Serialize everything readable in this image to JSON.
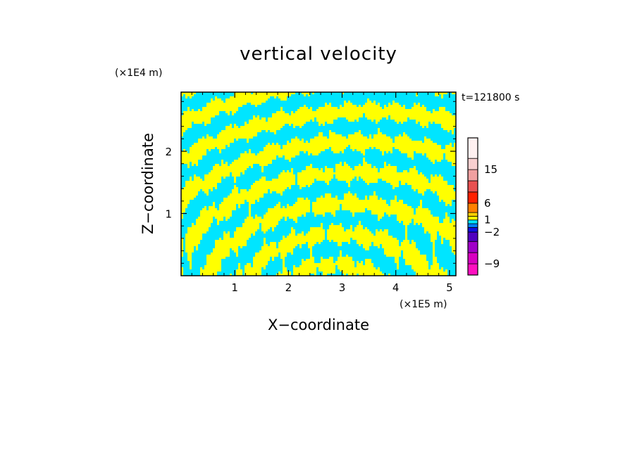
{
  "chart_data": {
    "type": "heatmap",
    "title": "vertical velocity",
    "xlabel": "X−coordinate",
    "ylabel": "Z−coordinate",
    "x_unit": "(×1E5 m)",
    "y_unit": "(×1E4 m)",
    "time_label": "t=121800 s",
    "xlim": [
      0,
      5.12
    ],
    "ylim": [
      0,
      2.95
    ],
    "x_ticks": [
      1,
      2,
      3,
      4,
      5
    ],
    "y_ticks": [
      1,
      2
    ],
    "x_tick_labels": [
      "1",
      "2",
      "3",
      "4",
      "5"
    ],
    "y_tick_labels": [
      "1",
      "2"
    ],
    "grid": false,
    "legend": "colorbar-right",
    "field_colors": {
      "positive": "#ffff00",
      "negative": "#00e5ff"
    },
    "colorbar": {
      "levels_bottom_to_top": [
        -12,
        -9,
        -6,
        -4,
        -2,
        -1,
        0,
        1,
        2,
        4,
        6,
        9,
        12,
        15,
        18,
        21
      ],
      "colors_bottom_to_top": [
        "#ff10c0",
        "#d800c0",
        "#a000c8",
        "#5000c0",
        "#1010e0",
        "#0080ff",
        "#00e5ff",
        "#ffff00",
        "#ffd000",
        "#ff8000",
        "#ff2000",
        "#e85050",
        "#f0a0a0",
        "#f8d0d0",
        "#fff0f0"
      ],
      "labels": [
        {
          "value": -9,
          "text": "−9"
        },
        {
          "value": -2,
          "text": "−2"
        },
        {
          "value": 1,
          "text": "1"
        },
        {
          "value": 6,
          "text": "6"
        },
        {
          "value": 15,
          "text": "15"
        }
      ]
    }
  }
}
